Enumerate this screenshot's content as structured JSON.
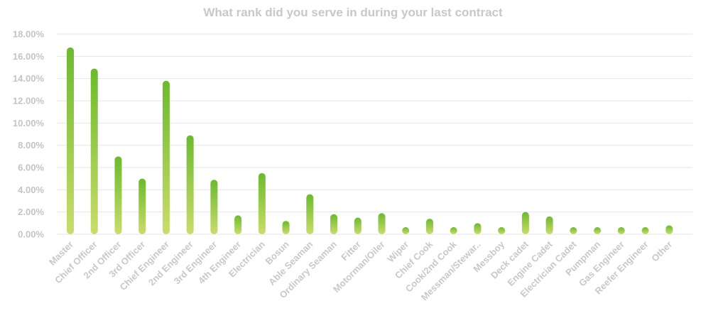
{
  "chart_data": {
    "type": "bar",
    "title": "What rank did you serve in during your last contract",
    "xlabel": "",
    "ylabel": "",
    "ylim": [
      0,
      18
    ],
    "yticks": [
      "0.00%",
      "2.00%",
      "4.00%",
      "6.00%",
      "8.00%",
      "10.00%",
      "12.00%",
      "14.00%",
      "16.00%",
      "18.00%"
    ],
    "grid": true,
    "legend": "none",
    "colors": {
      "bar_top": "#6cba2e",
      "bar_bottom": "#c9dd6b",
      "title": "#c8c8c8",
      "tick": "#c4c4c4",
      "grid": "#e6e6e6"
    },
    "categories": [
      "Master",
      "Chief Officer",
      "2nd Officer",
      "3rd Officer",
      "Chief Engineer",
      "2nd Engineer",
      "3rd Engineer",
      "4th Engineer",
      "Electrician",
      "Bosun",
      "Able Seaman",
      "Ordinary Seaman",
      "Fitter",
      "Motorman/Oiler",
      "Wiper",
      "Chief Cook",
      "Cook/2nd Cook",
      "Messman/Stewar..",
      "Messboy",
      "Deck cadet",
      "Engine Cadet",
      "Electrician Cadet",
      "Pumpman",
      "Gas Engineer",
      "Reefer Engineer",
      "Other"
    ],
    "values": [
      16.8,
      14.9,
      7.0,
      5.0,
      13.8,
      8.9,
      4.9,
      1.7,
      5.5,
      1.2,
      3.6,
      1.8,
      1.5,
      1.9,
      0.6,
      1.4,
      0.6,
      1.0,
      0.3,
      2.0,
      1.6,
      0.3,
      0.3,
      0.5,
      0.3,
      0.8
    ]
  }
}
